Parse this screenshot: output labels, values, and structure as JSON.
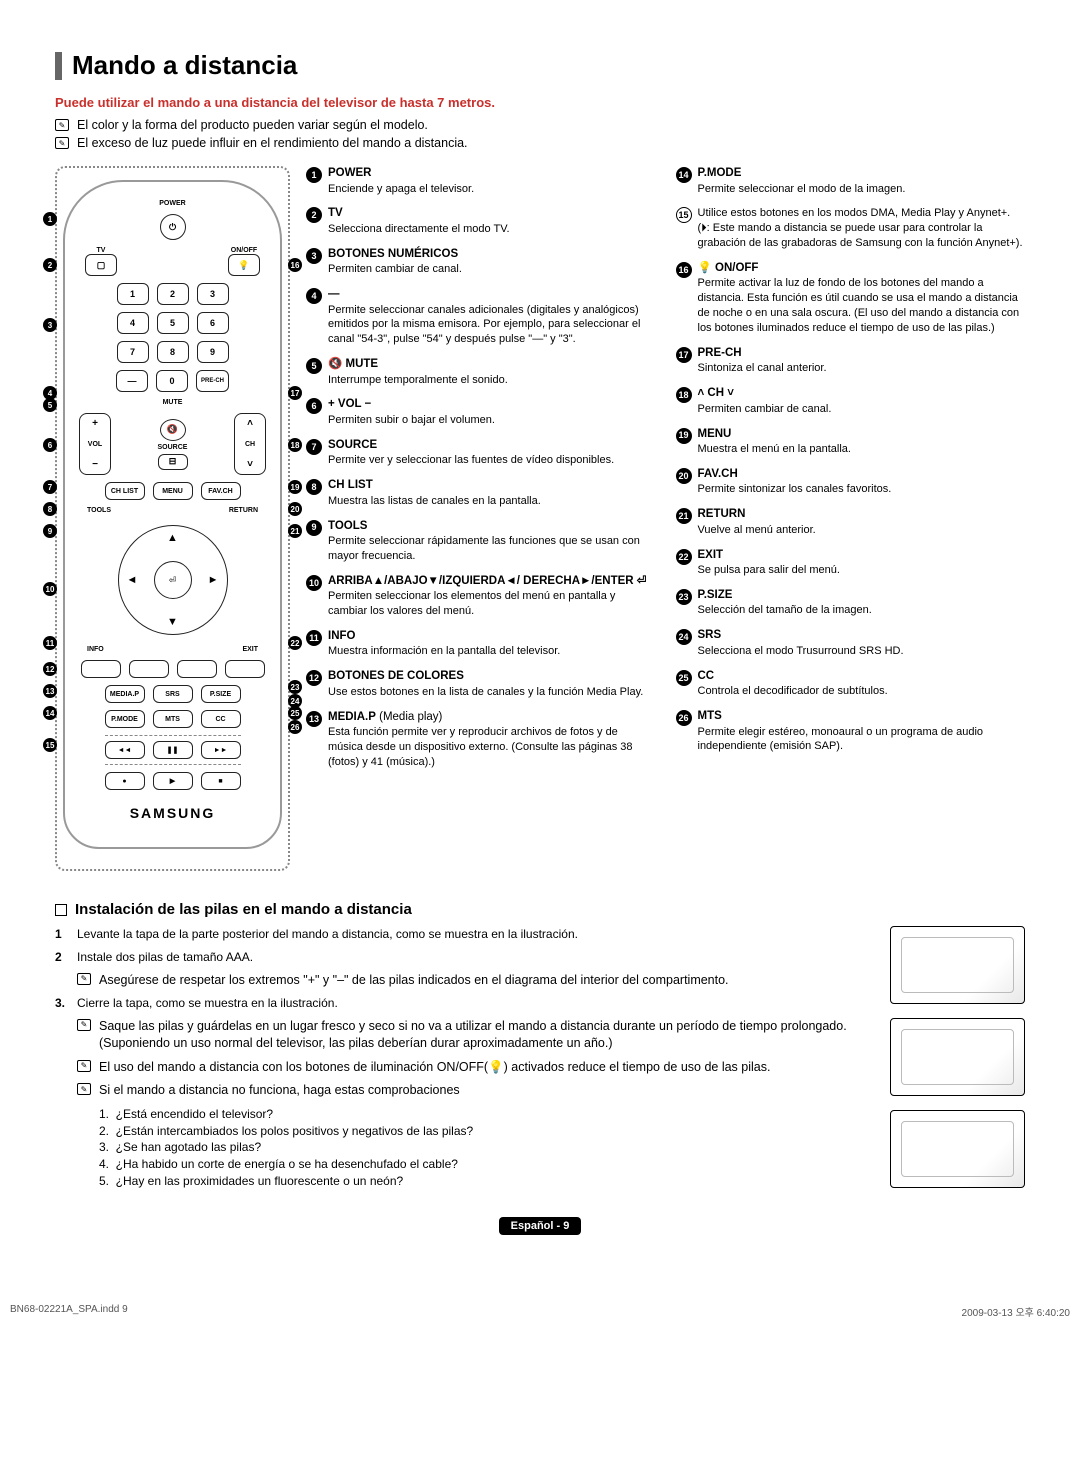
{
  "title": "Mando a distancia",
  "warning": "Puede utilizar el mando a una distancia del televisor de hasta 7 metros.",
  "notes": [
    "El color y la forma del producto pueden variar según el modelo.",
    "El exceso de luz puede influir en el rendimiento del mando a distancia."
  ],
  "remote": {
    "logo": "SAMSUNG",
    "labels": {
      "power": "POWER",
      "tv": "TV",
      "onoff": "ON/OFF",
      "prech": "PRE-CH",
      "mute": "MUTE",
      "vol": "VOL",
      "source": "SOURCE",
      "ch": "CH",
      "chlist": "CH LIST",
      "menu": "MENU",
      "favch": "FAV.CH",
      "mediap": "MEDIA.P",
      "srs": "SRS",
      "psize": "P.SIZE",
      "pmode": "P.MODE",
      "mts": "MTS",
      "cc": "CC"
    }
  },
  "bulb": "💡",
  "col1": [
    {
      "n": "1",
      "h": "POWER",
      "t": "Enciende y apaga el televisor."
    },
    {
      "n": "2",
      "h": "TV",
      "t": "Selecciona directamente el modo TV."
    },
    {
      "n": "3",
      "h": "BOTONES NUMÉRICOS",
      "t": "Permiten cambiar de canal."
    },
    {
      "n": "4",
      "h": "—",
      "t": "Permite seleccionar canales adicionales (digitales y analógicos) emitidos por la misma emisora. Por ejemplo, para seleccionar el canal \"54-3\", pulse \"54\" y después pulse \"—\" y \"3\"."
    },
    {
      "n": "5",
      "h": "🔇 MUTE",
      "t": "Interrumpe temporalmente el sonido."
    },
    {
      "n": "6",
      "h": "+ VOL −",
      "t": "Permiten subir o bajar el volumen."
    },
    {
      "n": "7",
      "h": "SOURCE",
      "t": "Permite ver y seleccionar las fuentes de vídeo disponibles."
    },
    {
      "n": "8",
      "h": "CH LIST",
      "t": "Muestra las listas de canales en la pantalla."
    },
    {
      "n": "9",
      "h": "TOOLS",
      "t": "Permite seleccionar rápidamente las funciones que se usan con mayor frecuencia."
    },
    {
      "n": "10",
      "h": "ARRIBA▲/ABAJO▼/IZQUIERDA◄/ DERECHA►/ENTER ⏎",
      "t": "Permiten seleccionar los elementos del menú en pantalla y cambiar los valores del menú."
    },
    {
      "n": "11",
      "h": "INFO",
      "t": "Muestra información en la pantalla del televisor."
    },
    {
      "n": "12",
      "h": "BOTONES DE COLORES",
      "t": "Use estos botones en la lista de canales y la función Media Play."
    },
    {
      "n": "13",
      "h": "MEDIA.P",
      "suffix": " (Media play)",
      "t": "Esta función permite ver y reproducir archivos de fotos y de música desde un dispositivo externo. (Consulte las páginas 38 (fotos) y 41 (música).)"
    }
  ],
  "col2": [
    {
      "n": "14",
      "h": "P.MODE",
      "t": "Permite seleccionar el modo de la imagen."
    },
    {
      "n": "15",
      "hollow": true,
      "h": "",
      "t": "Utilice estos botones en los modos DMA, Media Play y Anynet+.\n(⏵: Este mando a distancia se puede usar para controlar la grabación de las grabadoras de Samsung con la función Anynet+)."
    },
    {
      "n": "16",
      "h": "💡 ON/OFF",
      "t": "Permite activar la luz de fondo de los botones del mando a distancia. Esta función es útil cuando se usa el mando a distancia de noche o en una sala oscura. (El uso del mando a distancia con los botones iluminados reduce el tiempo de uso de las pilas.)"
    },
    {
      "n": "17",
      "h": "PRE-CH",
      "t": "Sintoniza el canal anterior."
    },
    {
      "n": "18",
      "h": "˄ CH ˅",
      "t": "Permiten cambiar de canal."
    },
    {
      "n": "19",
      "h": "MENU",
      "t": "Muestra el menú en la pantalla."
    },
    {
      "n": "20",
      "h": "FAV.CH",
      "t": "Permite sintonizar los canales favoritos."
    },
    {
      "n": "21",
      "h": "RETURN",
      "t": "Vuelve al menú anterior."
    },
    {
      "n": "22",
      "h": "EXIT",
      "t": "Se pulsa para salir del menú."
    },
    {
      "n": "23",
      "h": "P.SIZE",
      "t": "Selección del tamaño de la imagen."
    },
    {
      "n": "24",
      "h": "SRS",
      "t": "Selecciona el modo Trusurround SRS HD."
    },
    {
      "n": "25",
      "h": "CC",
      "t": "Controla el decodificador de subtítulos."
    },
    {
      "n": "26",
      "h": "MTS",
      "t": "Permite elegir estéreo, monoaural o un programa de audio independiente (emisión SAP)."
    }
  ],
  "install": {
    "title": "Instalación de las pilas en el mando a distancia",
    "step1": "Levante la tapa de la parte posterior del mando a distancia, como se muestra en la ilustración.",
    "step2": "Instale dos pilas de tamaño AAA.",
    "step2note": "Asegúrese de respetar los extremos \"+\" y \"–\" de las pilas indicados en el diagrama del interior del compartimento.",
    "step3": "Cierre la tapa, como se muestra en la ilustración.",
    "step3a": "Saque las pilas y guárdelas en un lugar fresco y seco si no va a utilizar el mando a distancia durante un período de tiempo prolongado. (Suponiendo un uso normal del televisor, las pilas deberían durar aproximadamente un año.)",
    "step3b": "El uso del mando a distancia con los botones de iluminación ON/OFF(💡) activados reduce el tiempo de uso de las pilas.",
    "step3c": "Si el mando a distancia no funciona, haga estas comprobaciones",
    "checks": [
      "¿Está encendido el televisor?",
      "¿Están intercambiados los polos positivos y negativos de las pilas?",
      "¿Se han agotado las pilas?",
      "¿Ha habido un corte de energía o se ha desenchufado el cable?",
      "¿Hay en las proximidades un fluorescente o un neón?"
    ]
  },
  "langbadge": "Español - 9",
  "footer": {
    "left": "BN68-02221A_SPA.indd   9",
    "right": "2009-03-13   오후 6:40:20"
  }
}
